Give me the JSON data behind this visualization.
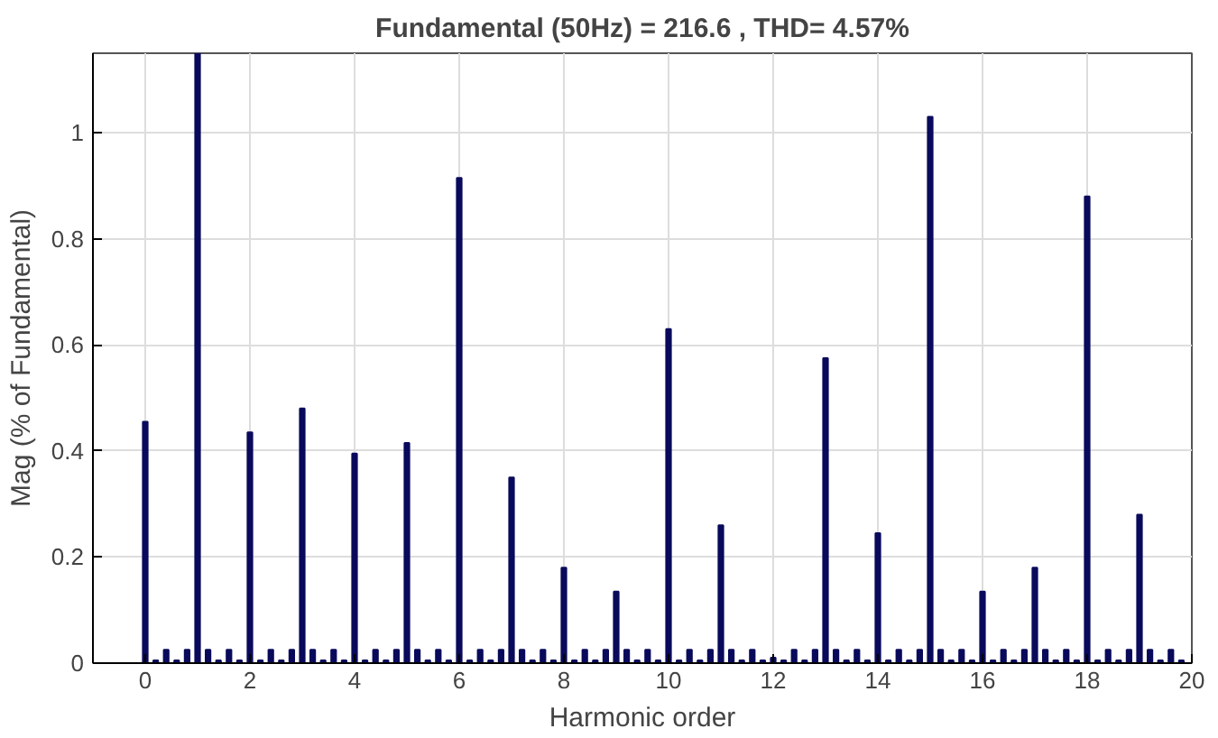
{
  "chart_data": {
    "type": "bar",
    "title": "Fundamental (50Hz) = 216.6 , THD= 4.57%",
    "xlabel": "Harmonic order",
    "ylabel": "Mag (% of Fundamental)",
    "x": [
      0,
      0.2,
      0.4,
      0.6,
      0.8,
      1,
      1.2,
      1.4,
      1.6,
      1.8,
      2,
      2.2,
      2.4,
      2.6,
      2.8,
      3,
      3.2,
      3.4,
      3.6,
      3.8,
      4,
      4.2,
      4.4,
      4.6,
      4.8,
      5,
      5.2,
      5.4,
      5.6,
      5.8,
      6,
      6.2,
      6.4,
      6.6,
      6.8,
      7,
      7.2,
      7.4,
      7.6,
      7.8,
      8,
      8.2,
      8.4,
      8.6,
      8.8,
      9,
      9.2,
      9.4,
      9.6,
      9.8,
      10,
      10.2,
      10.4,
      10.6,
      10.8,
      11,
      11.2,
      11.4,
      11.6,
      11.8,
      12,
      12.2,
      12.4,
      12.6,
      12.8,
      13,
      13.2,
      13.4,
      13.6,
      13.8,
      14,
      14.2,
      14.4,
      14.6,
      14.8,
      15,
      15.2,
      15.4,
      15.6,
      15.8,
      16,
      16.2,
      16.4,
      16.6,
      16.8,
      17,
      17.2,
      17.4,
      17.6,
      17.8,
      18,
      18.2,
      18.4,
      18.6,
      18.8,
      19,
      19.2,
      19.4,
      19.6,
      19.8
    ],
    "series": [
      {
        "color": "#0a0a5c",
        "values": [
          0.455,
          0.005,
          0.025,
          0.005,
          0.025,
          1.15,
          0.025,
          0.005,
          0.025,
          0.005,
          0.435,
          0.005,
          0.025,
          0.005,
          0.025,
          0.48,
          0.025,
          0.005,
          0.025,
          0.005,
          0.395,
          0.005,
          0.025,
          0.005,
          0.025,
          0.415,
          0.025,
          0.005,
          0.025,
          0.005,
          0.915,
          0.005,
          0.025,
          0.005,
          0.025,
          0.35,
          0.025,
          0.005,
          0.025,
          0.005,
          0.18,
          0.005,
          0.025,
          0.005,
          0.025,
          0.135,
          0.025,
          0.005,
          0.025,
          0.005,
          0.63,
          0.005,
          0.025,
          0.005,
          0.025,
          0.26,
          0.025,
          0.005,
          0.025,
          0.005,
          0.01,
          0.005,
          0.025,
          0.005,
          0.025,
          0.575,
          0.025,
          0.005,
          0.025,
          0.005,
          0.245,
          0.005,
          0.025,
          0.005,
          0.025,
          1.03,
          0.025,
          0.005,
          0.025,
          0.005,
          0.135,
          0.005,
          0.025,
          0.005,
          0.025,
          0.18,
          0.025,
          0.005,
          0.025,
          0.005,
          0.88,
          0.005,
          0.025,
          0.005,
          0.025,
          0.28,
          0.025,
          0.005,
          0.025,
          0.005
        ]
      }
    ],
    "xlim": [
      -1,
      20
    ],
    "ylim": [
      0,
      1.15
    ],
    "xticks": [
      0,
      2,
      4,
      6,
      8,
      10,
      12,
      14,
      16,
      18,
      20
    ],
    "yticks": [
      0,
      0.2,
      0.4,
      0.6,
      0.8,
      1
    ],
    "grid": true
  }
}
